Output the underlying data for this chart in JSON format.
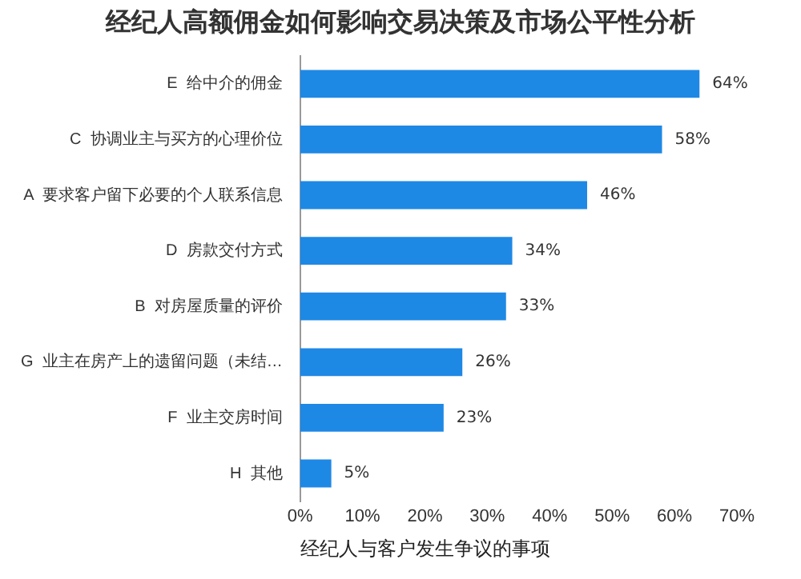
{
  "chart_data": {
    "type": "bar",
    "orientation": "horizontal",
    "title": "经纪人高额佣金如何影响交易决策及市场公平性分析",
    "xlabel": "经纪人与客户发生争议的事项",
    "categories": [
      "E  给中介的佣金",
      "C  协调业主与买方的心理价位",
      "A  要求客户留下必要的个人联系信息",
      "D  房款交付方式",
      "B  对房屋质量的评价",
      "G  业主在房产上的遗留问题（未结…",
      "F  业主交房时间",
      "H  其他"
    ],
    "values": [
      64,
      58,
      46,
      34,
      33,
      26,
      23,
      5
    ],
    "value_labels": [
      "64%",
      "58%",
      "46%",
      "34%",
      "33%",
      "26%",
      "23%",
      "5%"
    ],
    "color": "#1e88e5",
    "xlim": [
      0,
      70
    ],
    "xticks": [
      {
        "value": 0,
        "label": "0%"
      },
      {
        "value": 10,
        "label": "10%"
      },
      {
        "value": 20,
        "label": "20%"
      },
      {
        "value": 30,
        "label": "30%"
      },
      {
        "value": 40,
        "label": "40%"
      },
      {
        "value": 50,
        "label": "50%"
      },
      {
        "value": 60,
        "label": "60%"
      },
      {
        "value": 70,
        "label": "70%"
      }
    ],
    "grid": false,
    "legend": false
  }
}
